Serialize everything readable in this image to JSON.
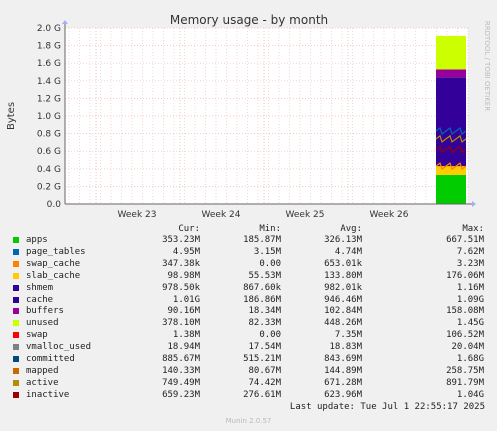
{
  "chart_data": {
    "type": "area",
    "title": "Memory usage - by month",
    "ylabel": "Bytes",
    "watermark": "RRDTOOL / TOBI OETIKER",
    "y_ticks": [
      "0.0",
      "0.2 G",
      "0.4 G",
      "0.6 G",
      "0.8 G",
      "1.0 G",
      "1.2 G",
      "1.4 G",
      "1.6 G",
      "1.8 G",
      "2.0 G"
    ],
    "ylim": [
      0,
      2.0
    ],
    "x_ticks": [
      "Week 23",
      "Week 24",
      "Week 25",
      "Week 26"
    ],
    "grid": true,
    "stack_top_gb": 1.93,
    "series": [
      {
        "name": "apps",
        "color": "#00cc00",
        "bottom_gb": 0.0,
        "top_gb": 0.33
      },
      {
        "name": "swap_cache",
        "color": "#ff8000",
        "bottom_gb": 0.33,
        "top_gb": 0.33
      },
      {
        "name": "slab_cache",
        "color": "#ffcc00",
        "bottom_gb": 0.33,
        "top_gb": 0.43
      },
      {
        "name": "shmem",
        "color": "#330099",
        "bottom_gb": 0.43,
        "top_gb": 0.43
      },
      {
        "name": "cache",
        "color": "#330099",
        "bottom_gb": 0.43,
        "top_gb": 1.44
      },
      {
        "name": "buffers",
        "color": "#990099",
        "bottom_gb": 1.44,
        "top_gb": 1.53
      },
      {
        "name": "unused",
        "color": "#ccff00",
        "bottom_gb": 1.53,
        "top_gb": 1.91
      },
      {
        "name": "committed",
        "color": "#0066b3",
        "line_gb": 0.83
      },
      {
        "name": "mapped",
        "color": "#ff8000",
        "line_gb": 0.43
      },
      {
        "name": "active",
        "color": "#b38f00",
        "line_gb": 0.74
      },
      {
        "name": "inactive",
        "color": "#990000",
        "line_gb": 0.62
      }
    ]
  },
  "legend": {
    "headers": {
      "cur": "Cur:",
      "min": "Min:",
      "avg": "Avg:",
      "max": "Max:"
    },
    "rows": [
      {
        "name": "apps",
        "color": "#00cc00",
        "cur": "353.23M",
        "min": "185.87M",
        "avg": "326.13M",
        "max": "667.51M"
      },
      {
        "name": "page_tables",
        "color": "#0066b3",
        "cur": "4.95M",
        "min": "3.15M",
        "avg": "4.74M",
        "max": "7.62M"
      },
      {
        "name": "swap_cache",
        "color": "#ff8000",
        "cur": "347.38k",
        "min": "0.00",
        "avg": "653.01k",
        "max": "3.23M"
      },
      {
        "name": "slab_cache",
        "color": "#ffcc00",
        "cur": "98.98M",
        "min": "55.53M",
        "avg": "133.80M",
        "max": "176.06M"
      },
      {
        "name": "shmem",
        "color": "#330099",
        "cur": "978.50k",
        "min": "867.60k",
        "avg": "982.01k",
        "max": "1.16M"
      },
      {
        "name": "cache",
        "color": "#330099",
        "cur": "1.01G",
        "min": "186.86M",
        "avg": "946.46M",
        "max": "1.09G"
      },
      {
        "name": "buffers",
        "color": "#990099",
        "cur": "90.16M",
        "min": "18.34M",
        "avg": "102.84M",
        "max": "158.08M"
      },
      {
        "name": "unused",
        "color": "#ccff00",
        "cur": "378.10M",
        "min": "82.33M",
        "avg": "448.26M",
        "max": "1.45G"
      },
      {
        "name": "swap",
        "color": "#ff0000",
        "cur": "1.38M",
        "min": "0.00",
        "avg": "7.35M",
        "max": "106.52M"
      },
      {
        "name": "vmalloc_used",
        "color": "#808080",
        "cur": "18.94M",
        "min": "17.54M",
        "avg": "18.83M",
        "max": "20.04M"
      },
      {
        "name": "committed",
        "color": "#004b7b",
        "cur": "885.67M",
        "min": "515.21M",
        "avg": "843.69M",
        "max": "1.68G"
      },
      {
        "name": "mapped",
        "color": "#cc6600",
        "cur": "140.33M",
        "min": "80.67M",
        "avg": "144.89M",
        "max": "258.75M"
      },
      {
        "name": "active",
        "color": "#b38f00",
        "cur": "749.49M",
        "min": "74.42M",
        "avg": "671.28M",
        "max": "891.79M"
      },
      {
        "name": "inactive",
        "color": "#990000",
        "cur": "659.23M",
        "min": "276.61M",
        "avg": "623.96M",
        "max": "1.04G"
      }
    ]
  },
  "footer": {
    "last_update": "Last update: Tue Jul  1 22:55:17 2025",
    "munin": "Munin 2.0.57"
  }
}
